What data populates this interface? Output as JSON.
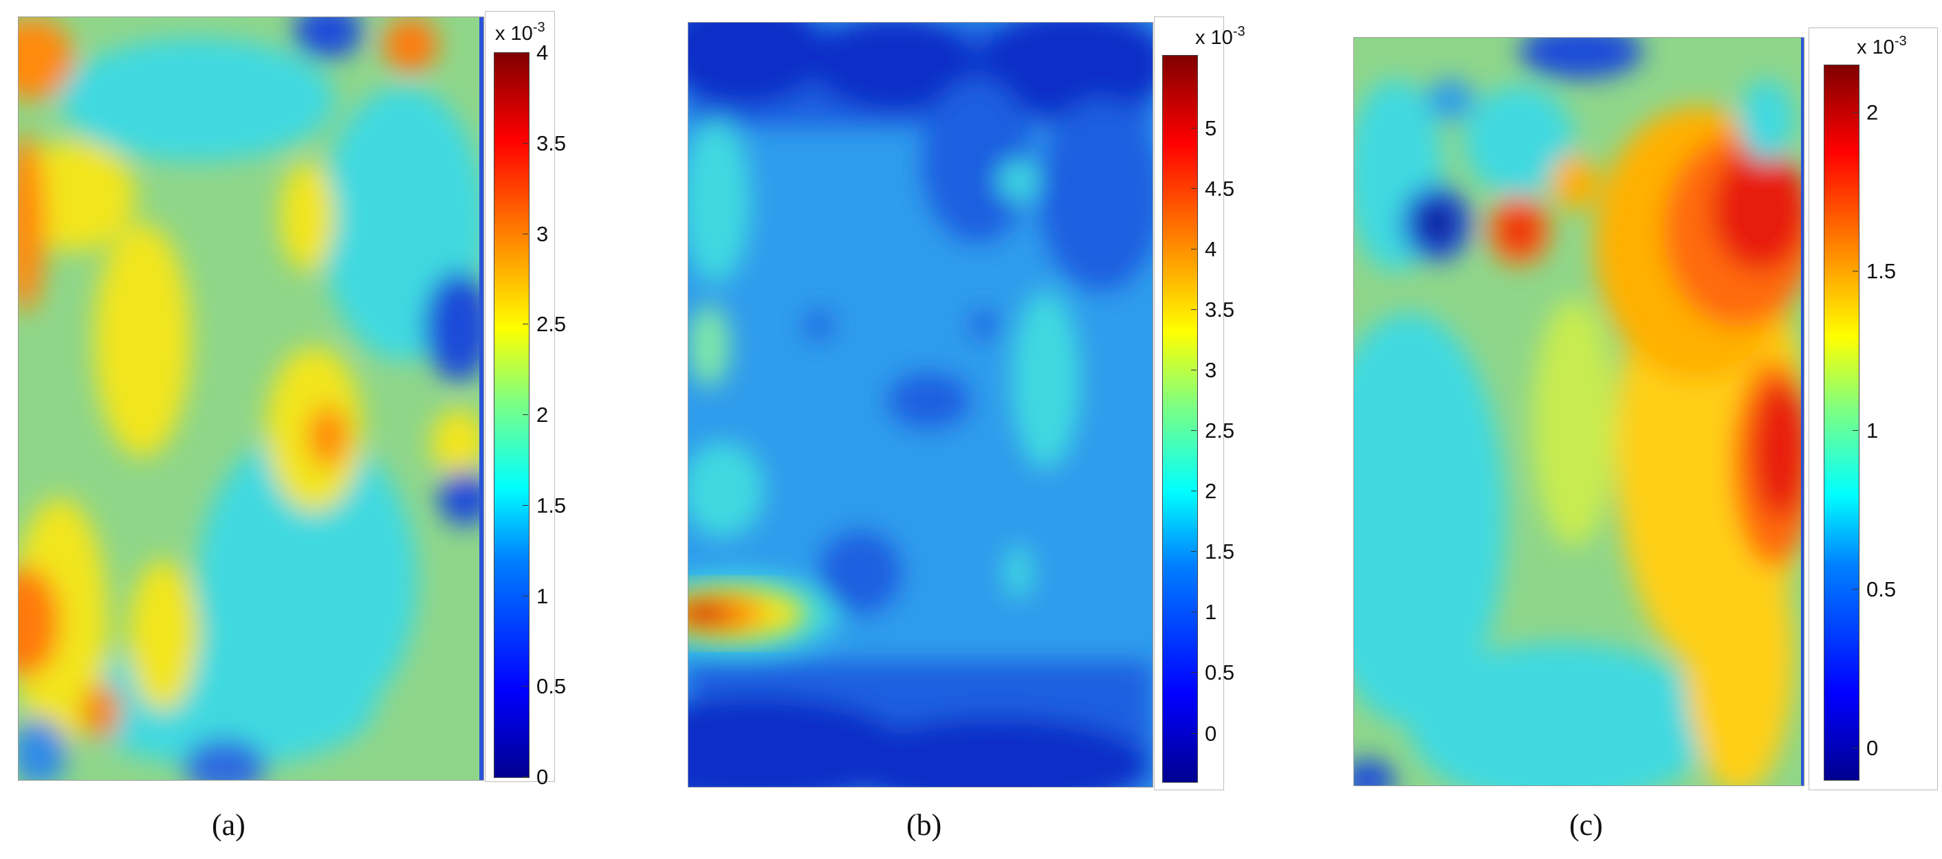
{
  "captions": [
    "(a)",
    "(b)",
    "(c)"
  ],
  "chart_data": [
    {
      "type": "heatmap",
      "title": "",
      "colormap": "jet",
      "colorbar_scale_label": "x 10",
      "colorbar_scale_exponent": "-3",
      "colorbar_range": [
        0,
        4
      ],
      "colorbar_ticks": [
        "0",
        "0.5",
        "1",
        "1.5",
        "2",
        "2.5",
        "3",
        "3.5",
        "4"
      ],
      "tick_values": [
        0,
        0.5,
        1,
        1.5,
        2,
        2.5,
        3,
        3.5,
        4
      ]
    },
    {
      "type": "heatmap",
      "title": "",
      "colormap": "jet",
      "colorbar_scale_label": "x 10",
      "colorbar_scale_exponent": "-3",
      "colorbar_range": [
        -0.4,
        5.6
      ],
      "colorbar_ticks": [
        "0",
        "0.5",
        "1",
        "1.5",
        "2",
        "2.5",
        "3",
        "3.5",
        "4",
        "4.5",
        "5"
      ],
      "tick_values": [
        0,
        0.5,
        1,
        1.5,
        2,
        2.5,
        3,
        3.5,
        4,
        4.5,
        5
      ]
    },
    {
      "type": "heatmap",
      "title": "",
      "colormap": "jet",
      "colorbar_scale_label": "x 10",
      "colorbar_scale_exponent": "-3",
      "colorbar_range": [
        -0.1,
        2.15
      ],
      "colorbar_ticks": [
        "0",
        "0.5",
        "1",
        "1.5",
        "2"
      ],
      "tick_values": [
        0,
        0.5,
        1,
        1.5,
        2
      ]
    }
  ]
}
